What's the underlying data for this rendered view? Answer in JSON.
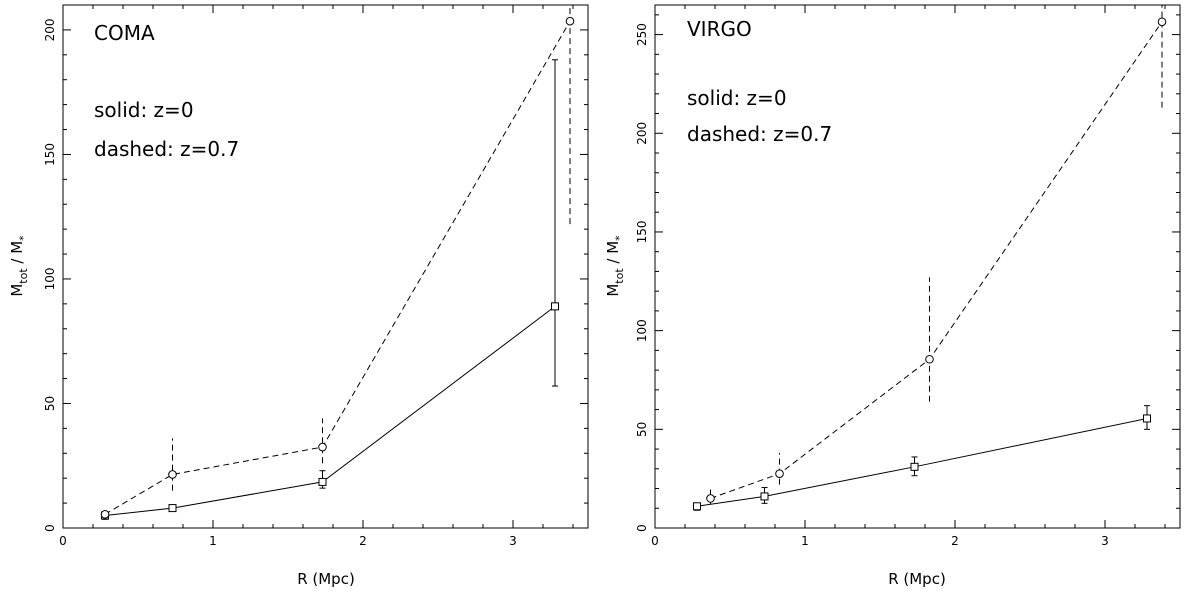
{
  "chart_data": [
    {
      "type": "line",
      "title": "COMA",
      "annotations": [
        "solid: z=0",
        "dashed: z=0.7"
      ],
      "xlabel": "R (Mpc)",
      "ylabel": {
        "base": "M",
        "sub": "tot",
        "rest": " / M",
        "sub2": "*"
      },
      "xlim": [
        0,
        3.5
      ],
      "ylim": [
        0,
        210
      ],
      "xticks": [
        0,
        1,
        2,
        3
      ],
      "yticks": [
        0,
        50,
        100,
        150,
        200
      ],
      "series": [
        {
          "style": "solid",
          "marker": "square",
          "x": [
            0.28,
            0.73,
            1.73,
            3.28
          ],
          "y": [
            5,
            8,
            18.5,
            89
          ],
          "err_low": [
            3.5,
            7,
            16,
            57
          ],
          "err_high": [
            6,
            9,
            23,
            188
          ]
        },
        {
          "style": "dashed",
          "marker": "circle",
          "x": [
            0.28,
            0.73,
            1.73,
            3.38
          ],
          "y": [
            5.5,
            21.5,
            32.5,
            203.5
          ],
          "err_low": [
            4,
            15,
            26,
            122
          ],
          "err_high": [
            7,
            36,
            44,
            210
          ]
        }
      ]
    },
    {
      "type": "line",
      "title": "VIRGO",
      "annotations": [
        "solid: z=0",
        "dashed: z=0.7"
      ],
      "xlabel": "R (Mpc)",
      "ylabel": {
        "base": "M",
        "sub": "tot",
        "rest": " / M",
        "sub2": "*"
      },
      "xlim": [
        0,
        3.5
      ],
      "ylim": [
        0,
        265
      ],
      "xticks": [
        0,
        1,
        2,
        3
      ],
      "yticks": [
        0,
        50,
        100,
        150,
        200,
        250
      ],
      "series": [
        {
          "style": "solid",
          "marker": "square",
          "x": [
            0.28,
            0.73,
            1.73,
            3.28
          ],
          "y": [
            11,
            16,
            31,
            55.5
          ],
          "err_low": [
            9,
            12.5,
            26.5,
            50
          ],
          "err_high": [
            12.5,
            20.5,
            36,
            62
          ]
        },
        {
          "style": "dashed",
          "marker": "circle",
          "x": [
            0.37,
            0.83,
            1.83,
            3.38
          ],
          "y": [
            15,
            27.5,
            85.5,
            256.5
          ],
          "err_low": [
            12,
            22,
            64,
            213
          ],
          "err_high": [
            19.5,
            38,
            127,
            265
          ]
        }
      ]
    }
  ]
}
